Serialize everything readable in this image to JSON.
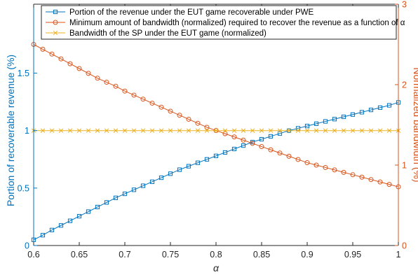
{
  "chart_data": {
    "type": "line",
    "x_values": [
      0.6,
      0.61,
      0.62,
      0.63,
      0.64,
      0.65,
      0.66,
      0.67,
      0.68,
      0.69,
      0.7,
      0.71,
      0.72,
      0.73,
      0.74,
      0.75,
      0.76,
      0.77,
      0.78,
      0.79,
      0.8,
      0.81,
      0.82,
      0.83,
      0.84,
      0.85,
      0.86,
      0.87,
      0.88,
      0.89,
      0.9,
      0.91,
      0.92,
      0.93,
      0.94,
      0.95,
      0.96,
      0.97,
      0.98,
      0.99,
      1.0
    ],
    "xlabel": "α",
    "xlim": [
      0.6,
      1
    ],
    "x_ticks": [
      0.6,
      0.65,
      0.7,
      0.75,
      0.8,
      0.85,
      0.9,
      0.95,
      1
    ],
    "x_tick_labels": [
      "0.6",
      "0.65",
      "0.7",
      "0.75",
      "0.8",
      "0.85",
      "0.9",
      "0.95",
      "1"
    ],
    "y_left": {
      "label": "Portion of recoverable revenue (%)",
      "lim": [
        0,
        2.1
      ],
      "ticks": [
        0,
        0.5,
        1,
        1.5
      ],
      "tick_labels": [
        "0",
        "0.5",
        "1",
        "1.5"
      ],
      "color": "#0072BD"
    },
    "y_right": {
      "label": "Normalized bandwidth (%)",
      "lim": [
        0,
        3
      ],
      "ticks": [
        0,
        1,
        2,
        3
      ],
      "tick_labels": [
        "0",
        "1",
        "2",
        "3"
      ],
      "color": "#D95319"
    },
    "series": [
      {
        "name": "Portion of the revenue under the EUT game recoverable under PWE",
        "axis": "left",
        "marker": "square",
        "color": "#0072BD",
        "values": [
          0.05,
          0.09,
          0.135,
          0.175,
          0.215,
          0.255,
          0.295,
          0.335,
          0.375,
          0.415,
          0.45,
          0.485,
          0.52,
          0.555,
          0.59,
          0.625,
          0.66,
          0.69,
          0.72,
          0.75,
          0.78,
          0.81,
          0.84,
          0.87,
          0.9,
          0.925,
          0.95,
          0.975,
          1.0,
          1.02,
          1.04,
          1.06,
          1.08,
          1.1,
          1.12,
          1.14,
          1.16,
          1.18,
          1.2,
          1.22,
          1.245
        ]
      },
      {
        "name": "Minimum amount of bandwidth (normalized) required to recover the revenue as a function of α",
        "axis": "right",
        "marker": "circle",
        "color": "#D95319",
        "values": [
          2.5,
          2.44,
          2.38,
          2.32,
          2.26,
          2.2,
          2.14,
          2.08,
          2.03,
          1.98,
          1.92,
          1.87,
          1.82,
          1.77,
          1.72,
          1.67,
          1.62,
          1.57,
          1.52,
          1.47,
          1.43,
          1.39,
          1.35,
          1.31,
          1.27,
          1.23,
          1.19,
          1.15,
          1.11,
          1.07,
          1.03,
          1.0,
          0.97,
          0.94,
          0.91,
          0.88,
          0.85,
          0.82,
          0.79,
          0.76,
          0.73
        ]
      },
      {
        "name": "Bandwidth of the SP under the EUT game (normalized)",
        "axis": "left",
        "marker": "x",
        "color": "#EDB120",
        "values": [
          1,
          1,
          1,
          1,
          1,
          1,
          1,
          1,
          1,
          1,
          1,
          1,
          1,
          1,
          1,
          1,
          1,
          1,
          1,
          1,
          1,
          1,
          1,
          1,
          1,
          1,
          1,
          1,
          1,
          1,
          1,
          1,
          1,
          1,
          1,
          1,
          1,
          1,
          1,
          1,
          1
        ]
      }
    ],
    "grid": false,
    "legend_position": "top"
  }
}
